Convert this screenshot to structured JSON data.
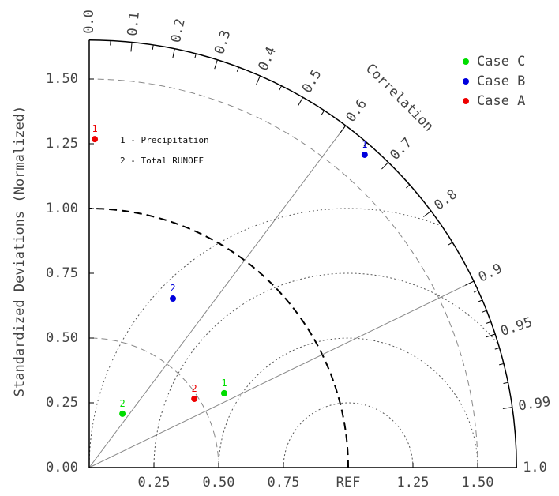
{
  "chart_data": {
    "type": "taylor",
    "y_axis_label": "Standardized Deviations (Normalized)",
    "corr_axis_label": "Correlation",
    "xlim": [
      0,
      1.65
    ],
    "ylim": [
      0,
      1.65
    ],
    "yticks": [
      {
        "value": 0,
        "label": "0.00"
      },
      0.25,
      {
        "value": 0.5,
        "label": "0.50"
      },
      0.75,
      {
        "value": 1,
        "label": "1.00"
      },
      1.25,
      {
        "value": 1.5,
        "label": "1.50"
      }
    ],
    "xticks": [
      0.25,
      {
        "value": 0.5,
        "label": "0.50"
      },
      0.75,
      {
        "value": 1,
        "label": "REF"
      },
      1.25,
      {
        "value": 1.5,
        "label": "1.50"
      }
    ],
    "corr_ticks": [
      {
        "value": 0,
        "label": "0.0"
      },
      0.1,
      0.2,
      0.3,
      0.4,
      0.5,
      0.6,
      0.7,
      0.8,
      0.9,
      0.95,
      0.99,
      {
        "value": 1,
        "label": "1.0"
      }
    ],
    "corr_minor_ticks": [
      0.05,
      0.15,
      0.25,
      0.35,
      0.45,
      0.55,
      0.65,
      0.75,
      0.85,
      0.91,
      0.92,
      0.93,
      0.94,
      0.96,
      0.97,
      0.98
    ],
    "corr_lines": [
      0.6,
      0.9
    ],
    "std_arcs": [
      0.5,
      1.5
    ],
    "ref_std": 1,
    "rms_circles": [
      0.25,
      0.5,
      0.75,
      1.0
    ],
    "marker_labels": [
      "1",
      "2"
    ],
    "variable_key": [
      "1 - Precipitation",
      "2 - Total RUNOFF"
    ],
    "legend": "upper right",
    "series": [
      {
        "name": "Case C",
        "color": "#00dd00",
        "std": [
          0.595,
          0.244
        ],
        "corr": [
          0.876,
          0.526
        ]
      },
      {
        "name": "Case B",
        "color": "#0000dd",
        "std": [
          1.609,
          0.728
        ],
        "corr": [
          0.661,
          0.444
        ]
      },
      {
        "name": "Case A",
        "color": "#ee0000",
        "std": [
          1.268,
          0.485
        ],
        "corr": [
          0.017,
          0.837
        ]
      }
    ]
  }
}
